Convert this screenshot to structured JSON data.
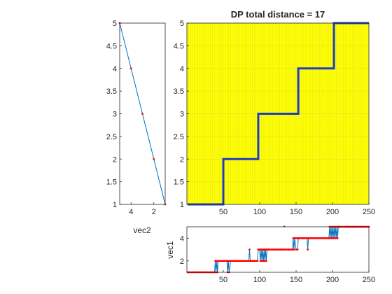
{
  "chart_data": [
    {
      "type": "line",
      "id": "main",
      "title": "DP total distance = 17",
      "xlabel": "vec1",
      "ylabel": "vec2",
      "xlim": [
        0,
        250
      ],
      "ylim": [
        1,
        5
      ],
      "xticks": [
        50,
        100,
        150,
        200,
        250
      ],
      "yticks": [
        1,
        1.5,
        2,
        2.5,
        3,
        3.5,
        4,
        4.5,
        5
      ],
      "background": "#ffff00",
      "grid_color": "#9a9a9a",
      "path_color": "#1f3fbf",
      "series": [
        {
          "x": [
            1,
            50,
            50,
            98,
            98,
            153,
            153,
            202,
            202,
            250
          ],
          "y": [
            1,
            1,
            2,
            2,
            3,
            3,
            4,
            4,
            5,
            5
          ]
        }
      ]
    },
    {
      "type": "line",
      "id": "left",
      "xlabel": "vec2",
      "ylim": [
        1,
        5
      ],
      "xlim": [
        1,
        5
      ],
      "x_reversed": true,
      "xticks": [
        4,
        2
      ],
      "yticks": [
        1,
        1.5,
        2,
        2.5,
        3,
        3.5,
        4,
        4.5,
        5
      ],
      "line_color": "#0072bd",
      "marker_color": "#ff0000",
      "series": [
        {
          "x": [
            5,
            4,
            3,
            2,
            1
          ],
          "y": [
            5,
            4,
            3,
            2,
            1
          ]
        }
      ]
    },
    {
      "type": "line",
      "id": "bottom",
      "ylabel": "vec1",
      "xlim": [
        0,
        250
      ],
      "ylim": [
        1,
        5
      ],
      "xticks": [
        50,
        100,
        150,
        200,
        250
      ],
      "yticks": [
        2,
        4
      ],
      "line_color": "#0072bd",
      "marker_color": "#ff0000",
      "series": [
        {
          "x": [
            1,
            38,
            39,
            40,
            41,
            42,
            43,
            50,
            55,
            56,
            57,
            58,
            60,
            62,
            63,
            70,
            80,
            85,
            86,
            87,
            90,
            97,
            98,
            100,
            101,
            102,
            103,
            104,
            105,
            106,
            107,
            108,
            109,
            110,
            111,
            112,
            120,
            130,
            140,
            145,
            146,
            147,
            148,
            150,
            152,
            153,
            155,
            160,
            165,
            166,
            167,
            170,
            180,
            190,
            195,
            196,
            197,
            198,
            199,
            200,
            201,
            202,
            203,
            204,
            205,
            206,
            207,
            208,
            210,
            220,
            230,
            240,
            250
          ],
          "y": [
            1,
            1,
            2,
            1,
            2,
            1,
            2,
            2,
            2,
            1,
            2,
            1,
            2,
            2,
            2,
            2,
            2,
            2,
            3,
            2,
            2,
            2,
            3,
            3,
            2,
            3,
            2,
            3,
            2,
            3,
            2,
            3,
            2,
            3,
            3,
            3,
            3,
            3,
            3,
            3,
            4,
            3,
            4,
            3,
            3,
            4,
            4,
            4,
            4,
            3,
            4,
            4,
            4,
            4,
            4,
            5,
            4,
            5,
            4,
            5,
            4,
            5,
            4,
            5,
            4,
            5,
            4,
            5,
            5,
            5,
            5,
            5,
            5
          ]
        }
      ]
    }
  ]
}
